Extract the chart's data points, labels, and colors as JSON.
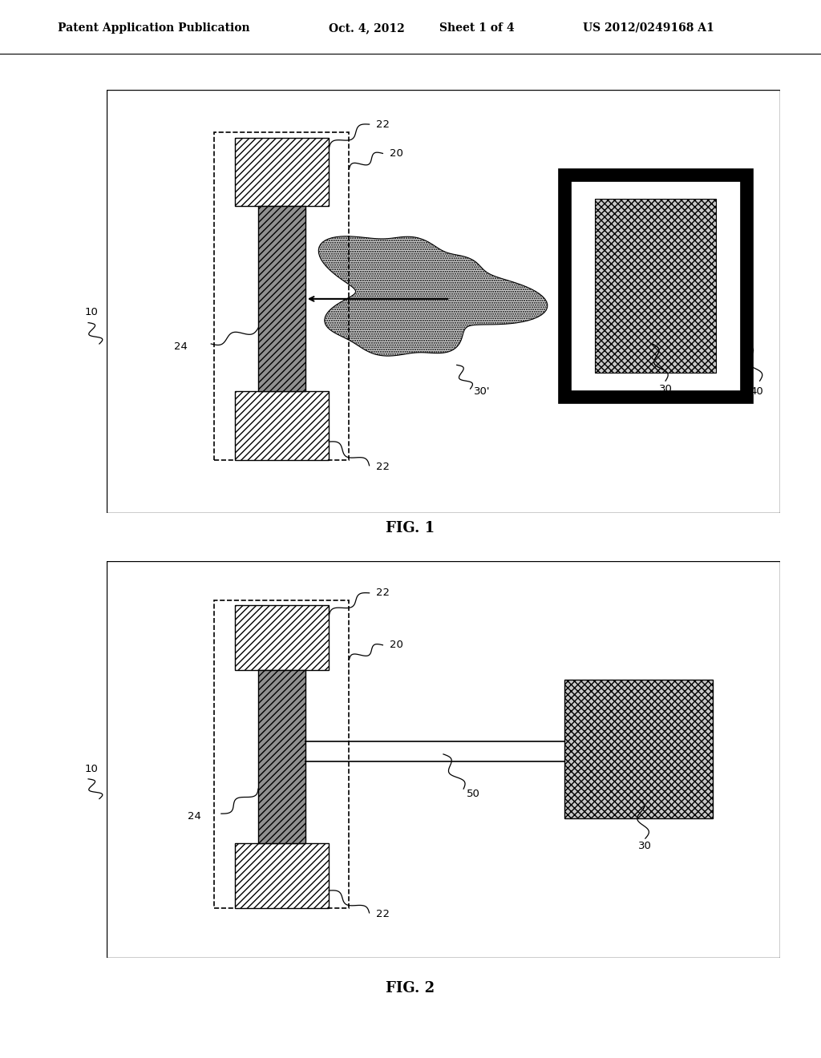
{
  "background_color": "#ffffff",
  "header_text": "Patent Application Publication",
  "header_date": "Oct. 4, 2012",
  "header_sheet": "Sheet 1 of 4",
  "header_patent": "US 2012/0249168 A1",
  "fig1_label": "FIG. 1",
  "fig2_label": "FIG. 2"
}
